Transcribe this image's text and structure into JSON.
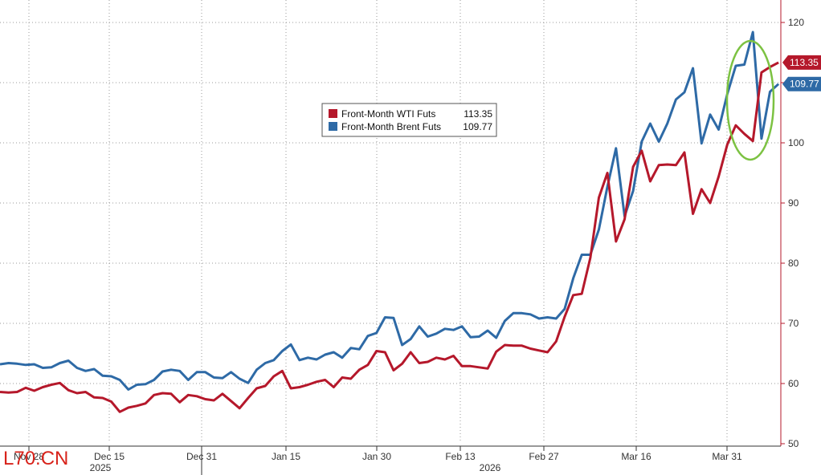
{
  "watermark": "L70.CN",
  "colors": {
    "wti": "#b5182b",
    "brent": "#2e6aa6",
    "circle": "#7cc242",
    "grid": "#999999",
    "axis": "#b5182b"
  },
  "chart_data": {
    "type": "line",
    "title": "",
    "xlabel": "",
    "ylabel": "",
    "ylim": [
      50,
      122
    ],
    "yticks": [
      50,
      60,
      70,
      80,
      90,
      100,
      110,
      120
    ],
    "x_tick_labels": [
      "Nov 28",
      "Dec 15",
      "Dec 31",
      "Jan 15",
      "Jan 30",
      "Feb 13",
      "Feb 27",
      "Mar 16",
      "Mar 31"
    ],
    "year_labels": [
      "2025",
      "2026"
    ],
    "grid": true,
    "legend_position": "top-center",
    "series": [
      {
        "name": "Front-Month WTI Futs",
        "last": "113.35",
        "values": [
          58.6,
          58.5,
          58.6,
          59.3,
          58.8,
          59.4,
          59.8,
          60.1,
          58.9,
          58.4,
          58.6,
          57.7,
          57.6,
          57.0,
          55.3,
          56.0,
          56.3,
          56.7,
          58.1,
          58.4,
          58.3,
          56.9,
          58.1,
          57.9,
          57.4,
          57.2,
          58.3,
          57.1,
          55.9,
          57.6,
          59.2,
          59.6,
          61.2,
          62.1,
          59.2,
          59.4,
          59.8,
          60.3,
          60.6,
          59.4,
          61.0,
          60.8,
          62.3,
          63.1,
          65.4,
          65.2,
          62.2,
          63.3,
          65.2,
          63.4,
          63.6,
          64.3,
          64.0,
          64.6,
          62.9,
          62.9,
          62.7,
          62.5,
          65.3,
          66.4,
          66.3,
          66.3,
          65.8,
          65.5,
          65.2,
          67.0,
          71.1,
          74.7,
          74.9,
          80.9,
          90.9,
          95.0,
          83.6,
          87.3,
          96.0,
          98.7,
          93.6,
          96.3,
          96.4,
          96.3,
          98.4,
          88.2,
          92.3,
          90.0,
          94.4,
          99.7,
          102.9,
          101.5,
          100.3,
          111.7,
          112.6,
          113.35
        ]
      },
      {
        "name": "Front-Month Brent Futs",
        "last": "109.77",
        "values": [
          63.2,
          63.4,
          63.3,
          63.1,
          63.2,
          62.6,
          62.7,
          63.4,
          63.8,
          62.6,
          62.1,
          62.4,
          61.3,
          61.2,
          60.6,
          59.0,
          59.8,
          59.9,
          60.6,
          62.0,
          62.3,
          62.1,
          60.6,
          61.9,
          61.9,
          61.0,
          60.9,
          61.9,
          60.8,
          60.1,
          62.3,
          63.4,
          63.9,
          65.4,
          66.5,
          63.9,
          64.3,
          64.0,
          64.8,
          65.2,
          64.3,
          65.9,
          65.7,
          67.9,
          68.4,
          71.0,
          70.9,
          66.4,
          67.4,
          69.5,
          67.8,
          68.3,
          69.1,
          68.9,
          69.5,
          67.7,
          67.8,
          68.8,
          67.6,
          70.4,
          71.7,
          71.7,
          71.5,
          70.8,
          71.0,
          70.8,
          72.4,
          77.5,
          81.4,
          81.4,
          85.6,
          92.7,
          99.1,
          87.8,
          92.0,
          100.2,
          103.2,
          100.2,
          103.2,
          107.2,
          108.4,
          112.4,
          99.9,
          104.7,
          102.2,
          108.1,
          112.8,
          113.0,
          118.4,
          100.7,
          108.5,
          109.77
        ]
      }
    ]
  }
}
